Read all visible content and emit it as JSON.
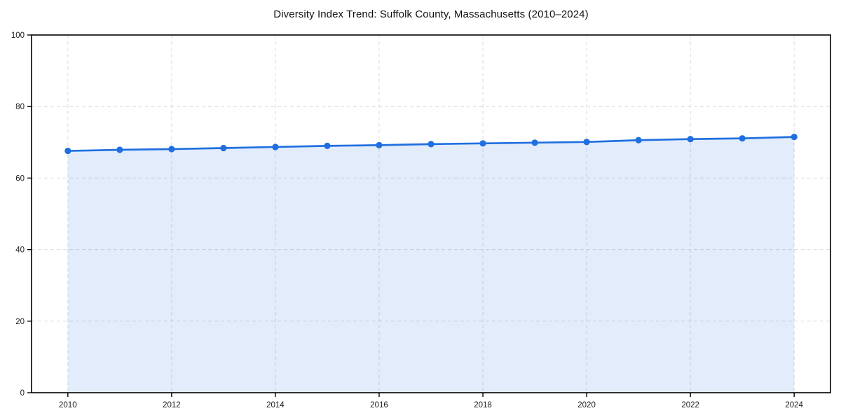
{
  "page": {
    "background": "#ffffff"
  },
  "chart_data": {
    "type": "line",
    "title": "Diversity Index Trend: Suffolk County, Massachusetts (2010–2024)",
    "x": [
      2010,
      2011,
      2012,
      2013,
      2014,
      2015,
      2016,
      2017,
      2018,
      2019,
      2020,
      2021,
      2022,
      2023,
      2024
    ],
    "series": [
      {
        "name": "Diversity Index",
        "values": [
          67.6,
          67.9,
          68.1,
          68.4,
          68.7,
          69.0,
          69.2,
          69.5,
          69.7,
          69.9,
          70.1,
          70.6,
          70.9,
          71.1,
          71.5
        ]
      }
    ],
    "xlabel": "",
    "ylabel": "",
    "xticks": [
      2010,
      2012,
      2014,
      2016,
      2018,
      2020,
      2022,
      2024
    ],
    "yticks": [
      0,
      20,
      40,
      60,
      80,
      100
    ],
    "xlim": [
      2009.3,
      2024.7
    ],
    "ylim": [
      0,
      100
    ],
    "grid": true,
    "grid_style": "dashed",
    "legend": "none",
    "marker": "circle",
    "area_fill": true,
    "colors": {
      "line": "#1f6fe0",
      "fill": "rgba(31,111,224,0.13)",
      "grid": "#dcdcdc",
      "spine": "#000000",
      "tick_label": "#1a1a1a",
      "title": "#111111",
      "background": "#ffffff"
    }
  }
}
